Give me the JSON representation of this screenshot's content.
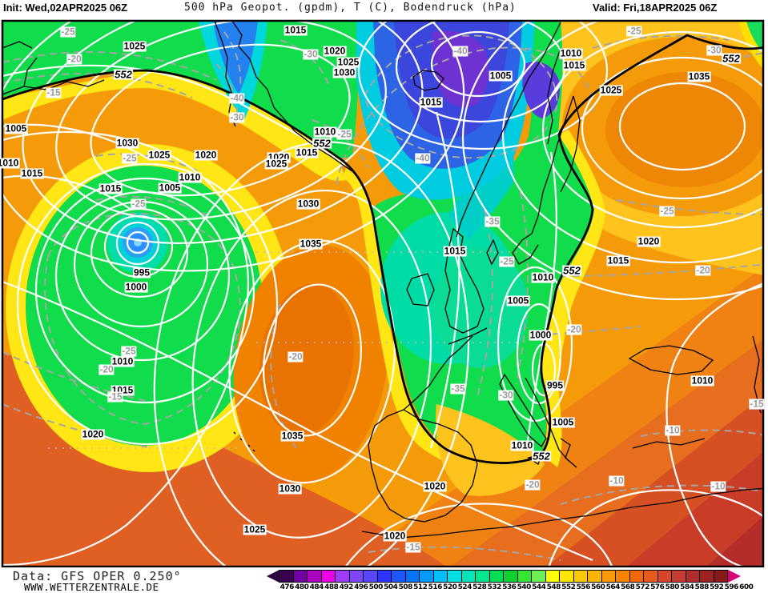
{
  "header": {
    "init_label": "Init: Wed,02APR2025 06Z",
    "title": "500 hPa Geopot. (gpdm), T (C), Bodendruck (hPa)",
    "valid_label": "Valid: Fri,18APR2025 06Z"
  },
  "footer": {
    "data_source": "Data: GFS OPER 0.250°",
    "website": "WWW.WETTERZENTRALE.DE"
  },
  "colorbar": {
    "unit": "gpdm",
    "values": [
      "476",
      "480",
      "484",
      "488",
      "492",
      "496",
      "500",
      "504",
      "508",
      "512",
      "516",
      "520",
      "524",
      "528",
      "532",
      "536",
      "540",
      "544",
      "548",
      "552",
      "556",
      "560",
      "564",
      "568",
      "572",
      "576",
      "580",
      "584",
      "588",
      "592",
      "596",
      "600"
    ],
    "colors": [
      "#3C0050",
      "#7300A1",
      "#AD00C3",
      "#EB00EB",
      "#A03CFF",
      "#7D46FF",
      "#5A46FF",
      "#2D32FF",
      "#1E55FF",
      "#0073FF",
      "#009BFF",
      "#00BEFF",
      "#00E1E1",
      "#00E6B9",
      "#00E68C",
      "#00DC55",
      "#0FD232",
      "#32E632",
      "#69F055",
      "#FFFF00",
      "#FFE600",
      "#FFC800",
      "#FFB400",
      "#FF9B00",
      "#FF8200",
      "#F56900",
      "#E65A1E",
      "#D74628",
      "#C33C32",
      "#AF2D2D",
      "#9B2323",
      "#871919"
    ],
    "left_arrow_color": "#2D0040",
    "right_arrow_color": "#DC0078"
  },
  "map_labels": {
    "pressure_color": "#000000",
    "temperature_color": "#9A9A9A",
    "pressure": [
      [
        168,
        58,
        "1025"
      ],
      [
        369,
        38,
        "1015"
      ],
      [
        418,
        64,
        "1020"
      ],
      [
        435,
        78,
        "1025"
      ],
      [
        430,
        91,
        "1030"
      ],
      [
        406,
        165,
        "1010"
      ],
      [
        383,
        191,
        "1015"
      ],
      [
        348,
        197,
        "1020"
      ],
      [
        345,
        205,
        "1025"
      ],
      [
        385,
        255,
        "1030"
      ],
      [
        20,
        161,
        "1005"
      ],
      [
        10,
        204,
        "1010"
      ],
      [
        40,
        217,
        "1015"
      ],
      [
        159,
        179,
        "1030"
      ],
      [
        199,
        194,
        "1025"
      ],
      [
        257,
        194,
        "1020"
      ],
      [
        237,
        222,
        "1010"
      ],
      [
        212,
        235,
        "1005"
      ],
      [
        138,
        236,
        "1015"
      ],
      [
        625,
        95,
        "1005"
      ],
      [
        538,
        128,
        "1015"
      ],
      [
        713,
        67,
        "1010"
      ],
      [
        717,
        82,
        "1015"
      ],
      [
        763,
        113,
        "1025"
      ],
      [
        873,
        96,
        "1035"
      ],
      [
        177,
        341,
        "995"
      ],
      [
        170,
        359,
        "1000"
      ],
      [
        153,
        452,
        "1010"
      ],
      [
        153,
        488,
        "1015"
      ],
      [
        388,
        305,
        "1035"
      ],
      [
        568,
        314,
        "1015"
      ],
      [
        810,
        302,
        "1020"
      ],
      [
        772,
        326,
        "1015"
      ],
      [
        678,
        347,
        "1010"
      ],
      [
        647,
        376,
        "1005"
      ],
      [
        675,
        419,
        "1000"
      ],
      [
        693,
        482,
        "995"
      ],
      [
        877,
        476,
        "1010"
      ],
      [
        703,
        528,
        "1005"
      ],
      [
        652,
        557,
        "1010"
      ],
      [
        116,
        543,
        "1020"
      ],
      [
        365,
        545,
        "1035"
      ],
      [
        362,
        611,
        "1030"
      ],
      [
        318,
        662,
        "1025"
      ],
      [
        543,
        608,
        "1020"
      ],
      [
        493,
        670,
        "1020"
      ]
    ],
    "geopotential": [
      [
        154,
        93,
        "552"
      ],
      [
        402,
        179,
        "552"
      ],
      [
        913,
        73,
        "552"
      ],
      [
        714,
        338,
        "552"
      ],
      [
        676,
        570,
        "552"
      ]
    ],
    "temperature": [
      [
        85,
        40,
        "-25"
      ],
      [
        93,
        74,
        "-20"
      ],
      [
        67,
        116,
        "-15"
      ],
      [
        296,
        123,
        "-40"
      ],
      [
        296,
        147,
        "-30"
      ],
      [
        162,
        198,
        "-25"
      ],
      [
        173,
        255,
        "-25"
      ],
      [
        388,
        68,
        "-30"
      ],
      [
        430,
        168,
        "-25"
      ],
      [
        528,
        198,
        "-40"
      ],
      [
        575,
        64,
        "-40"
      ],
      [
        792,
        39,
        "-25"
      ],
      [
        892,
        63,
        "-30"
      ],
      [
        161,
        439,
        "-25"
      ],
      [
        133,
        462,
        "-20"
      ],
      [
        144,
        496,
        "-15"
      ],
      [
        369,
        446,
        "-20"
      ],
      [
        615,
        277,
        "-35"
      ],
      [
        633,
        327,
        "-25"
      ],
      [
        572,
        486,
        "-35"
      ],
      [
        632,
        494,
        "-30"
      ],
      [
        833,
        264,
        "-25"
      ],
      [
        878,
        338,
        "-20"
      ],
      [
        717,
        412,
        "-20"
      ],
      [
        665,
        606,
        "-20"
      ],
      [
        516,
        684,
        "-15"
      ],
      [
        840,
        538,
        "-10"
      ],
      [
        770,
        601,
        "-10"
      ],
      [
        897,
        608,
        "-10"
      ],
      [
        945,
        505,
        "-15"
      ]
    ]
  }
}
